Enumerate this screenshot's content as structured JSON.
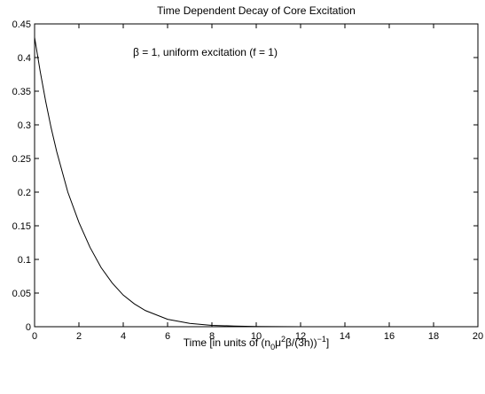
{
  "chart_data": {
    "type": "line",
    "title": "Time Dependent Decay of Core Excitation",
    "annotation": "β = 1, uniform excitation (f = 1)",
    "xlabel": [
      "Time [in units of (n",
      "0",
      "μ",
      "2",
      "β/(3h))",
      "−1",
      "]"
    ],
    "x": [
      0,
      0.25,
      0.5,
      0.75,
      1,
      1.5,
      2,
      2.5,
      3,
      3.5,
      4,
      4.5,
      5,
      6,
      7,
      8,
      9,
      10,
      12,
      14,
      16,
      18,
      20
    ],
    "y": [
      0.43,
      0.38,
      0.335,
      0.295,
      0.26,
      0.2,
      0.155,
      0.118,
      0.088,
      0.065,
      0.047,
      0.034,
      0.024,
      0.011,
      0.005,
      0.002,
      0.001,
      0.0003,
      0,
      0,
      0,
      0,
      0
    ],
    "color": "#000000",
    "xlim": [
      0,
      20
    ],
    "xticks": [
      0,
      2,
      4,
      6,
      8,
      10,
      12,
      14,
      16,
      18,
      20
    ],
    "ylim": [
      0,
      0.45
    ],
    "yticks": [
      0,
      0.05,
      0.1,
      0.15,
      0.2,
      0.25,
      0.3,
      0.35,
      0.4,
      0.45
    ]
  }
}
